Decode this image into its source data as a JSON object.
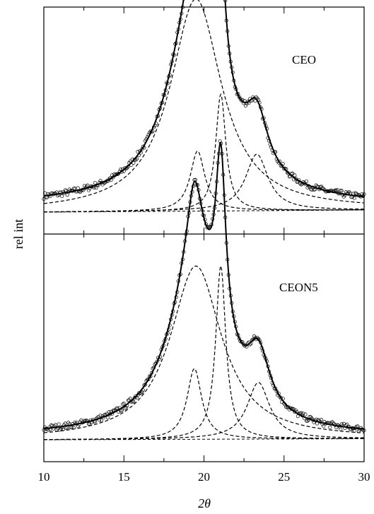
{
  "chart_data": {
    "type": "line",
    "xlabel": "2θ",
    "ylabel": "rel int",
    "xlim": [
      10,
      30
    ],
    "x_ticks": [
      10,
      15,
      20,
      25,
      30
    ],
    "grid": false,
    "panels": [
      {
        "label": "CEO",
        "baseline": 0.02,
        "components": [
          {
            "name": "",
            "style": "dashed",
            "center": 19.5,
            "height": 0.6,
            "width": 1.95
          },
          {
            "name": "",
            "style": "dashed",
            "center": 19.6,
            "height": 0.17,
            "width": 0.55
          },
          {
            "name": "",
            "style": "dashed",
            "center": 21.05,
            "height": 0.33,
            "width": 0.38
          },
          {
            "name": "",
            "style": "dashed",
            "center": 23.3,
            "height": 0.16,
            "width": 0.85
          }
        ],
        "fit_style": "solid",
        "observed_style": "open-circles"
      },
      {
        "label": "CEON5",
        "baseline": 0.01,
        "components": [
          {
            "name": "",
            "style": "dashed",
            "center": 19.5,
            "height": 0.49,
            "width": 1.95
          },
          {
            "name": "",
            "style": "dashed",
            "center": 19.4,
            "height": 0.2,
            "width": 0.55
          },
          {
            "name": "",
            "style": "dashed",
            "center": 21.05,
            "height": 0.49,
            "width": 0.38
          },
          {
            "name": "",
            "style": "dashed",
            "center": 23.4,
            "height": 0.16,
            "width": 0.85
          }
        ],
        "fit_style": "solid",
        "observed_style": "open-circles"
      }
    ]
  }
}
